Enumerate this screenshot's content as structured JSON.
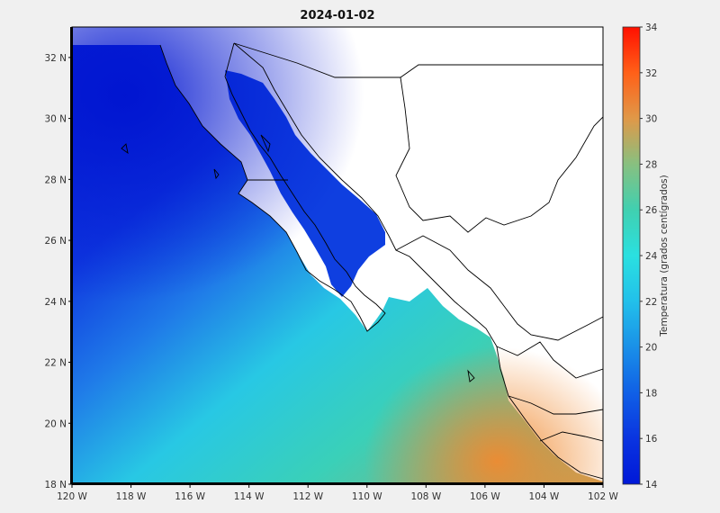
{
  "map": {
    "title": "2024-01-02",
    "x_ticks": [
      "120 W",
      "118 W",
      "116 W",
      "114 W",
      "112 W",
      "110 W",
      "108 W",
      "106 W",
      "104 W",
      "102 W"
    ],
    "x_tick_values": [
      -120,
      -118,
      -116,
      -114,
      -112,
      -110,
      -108,
      -106,
      -104,
      -102
    ],
    "y_ticks": [
      "32 N",
      "30 N",
      "28 N",
      "26 N",
      "24 N",
      "22 N",
      "20 N",
      "18 N"
    ],
    "y_tick_values": [
      32,
      30,
      28,
      26,
      24,
      22,
      20,
      18
    ],
    "lon_range": [
      -120,
      -102
    ],
    "lat_range": [
      18,
      33
    ],
    "land_color": "#ffffff",
    "border_color": "#000000"
  },
  "colorbar": {
    "label": "Temperatura (grados centígrados)",
    "range": [
      14,
      34
    ],
    "ticks": [
      "34",
      "32",
      "30",
      "28",
      "26",
      "24",
      "22",
      "20",
      "18",
      "16",
      "14"
    ],
    "tick_values": [
      34,
      32,
      30,
      28,
      26,
      24,
      22,
      20,
      18,
      16,
      14
    ],
    "colors": [
      "#0018d8",
      "#0028e0",
      "#0c4ee8",
      "#1a7ae8",
      "#20a8ea",
      "#28d8e8",
      "#38d8c0",
      "#68c898",
      "#98b878",
      "#d8a050",
      "#f08828",
      "#ff5010",
      "#ff1800"
    ]
  }
}
